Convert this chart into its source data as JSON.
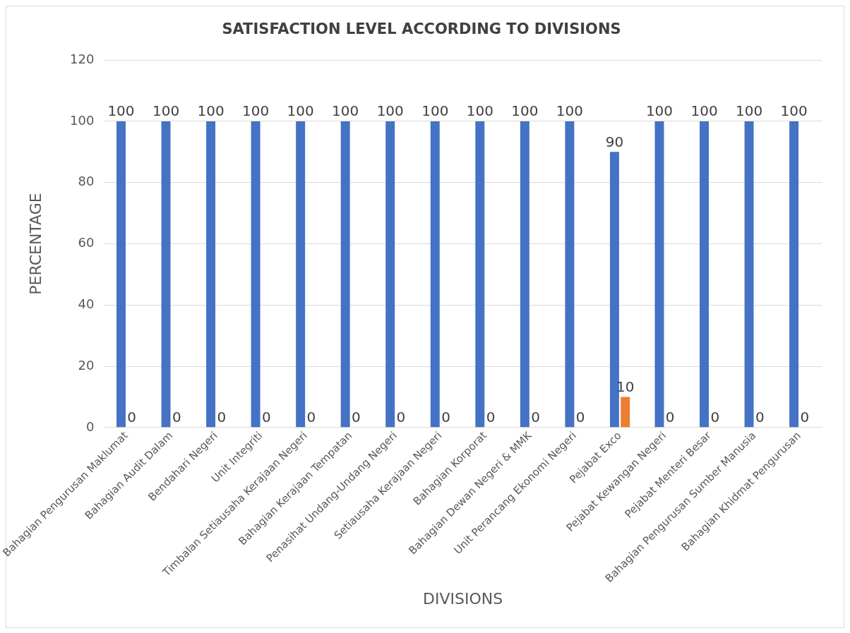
{
  "chart_data": {
    "type": "bar",
    "title": "SATISFACTION LEVEL ACCORDING TO DIVISIONS",
    "xlabel": "DIVISIONS",
    "ylabel": "PERCENTAGE",
    "categories": [
      "Bahagian Pengurusan Maklumat",
      "Bahagian Audit Dalam",
      "Bendahari Negeri",
      "Unit Integriti",
      "Timbalan Setiausaha Kerajaan Negeri",
      "Bahagian Kerajaan Tempatan",
      "Penasihat Undang-Undang Negeri",
      "Setiausaha Kerajaan Negeri",
      "Bahagian Korporat",
      "Bahagian Dewan Negeri & MMK",
      "Unit Perancang Ekonomi Negeri",
      "Pejabat Exco",
      "Pejabat Kewangan Negeri",
      "Pejabat Menteri Besar",
      "Bahagian Pengurusan Sumber Manusia",
      "Bahagian Khidmat Pengurusan"
    ],
    "series": [
      {
        "color": "#4472c4",
        "values": [
          100,
          100,
          100,
          100,
          100,
          100,
          100,
          100,
          100,
          100,
          100,
          90,
          100,
          100,
          100,
          100
        ]
      },
      {
        "color": "#ed7d31",
        "values": [
          0,
          0,
          0,
          0,
          0,
          0,
          0,
          0,
          0,
          0,
          0,
          10,
          0,
          0,
          0,
          0
        ]
      }
    ],
    "ylim": [
      0,
      120
    ],
    "yticks": [
      0,
      20,
      40,
      60,
      80,
      100,
      120
    ],
    "grid": "y",
    "legend": false,
    "data_labels": true
  }
}
